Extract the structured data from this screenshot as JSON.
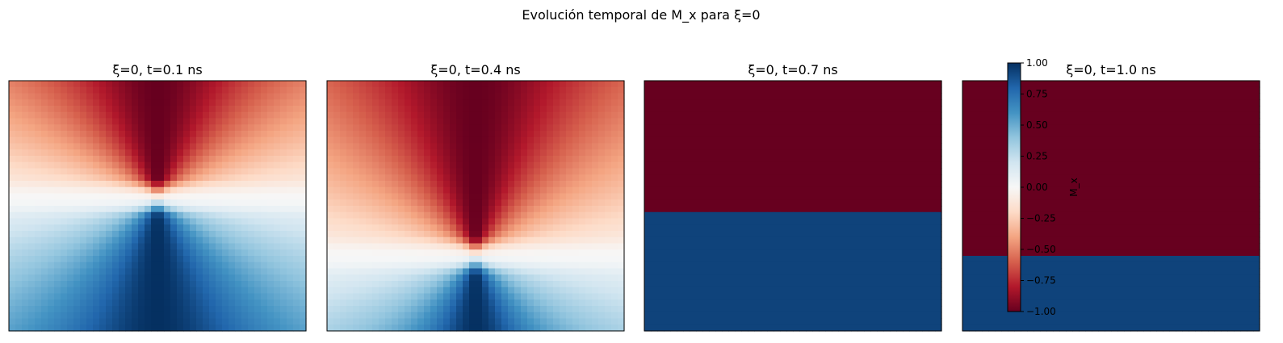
{
  "figure": {
    "title": "Evolución temporal de M_x para ξ=0"
  },
  "chart_data": {
    "type": "heatmap",
    "colormap": "RdBu",
    "panels": [
      {
        "title": "ξ=0, t=0.1 ns",
        "t_ns": 0.1,
        "pattern": "vortex",
        "core_y": 0.47,
        "spread": 1.0
      },
      {
        "title": "ξ=0, t=0.4 ns",
        "t_ns": 0.4,
        "pattern": "vortex",
        "core_y": 0.7,
        "spread": 0.85
      },
      {
        "title": "ξ=0, t=0.7 ns",
        "t_ns": 0.7,
        "pattern": "domains",
        "wall_y": [
          0.52,
          0.52,
          0.52,
          0.52,
          0.52,
          0.52,
          0.515,
          0.515
        ]
      },
      {
        "title": "ξ=0, t=1.0 ns",
        "t_ns": 1.0,
        "pattern": "domains",
        "wall_y": [
          0.69,
          0.69,
          0.7,
          0.71,
          0.71,
          0.7,
          0.7,
          0.69
        ]
      }
    ],
    "colorbar": {
      "label": "M_x",
      "range": [
        -1.0,
        1.0
      ],
      "ticks": [
        "1.00",
        "0.75",
        "0.50",
        "0.25",
        "0.00",
        "−0.25",
        "−0.50",
        "−0.75",
        "−1.00"
      ],
      "tick_values": [
        1.0,
        0.75,
        0.5,
        0.25,
        0.0,
        -0.25,
        -0.5,
        -0.75,
        -1.0
      ]
    }
  }
}
